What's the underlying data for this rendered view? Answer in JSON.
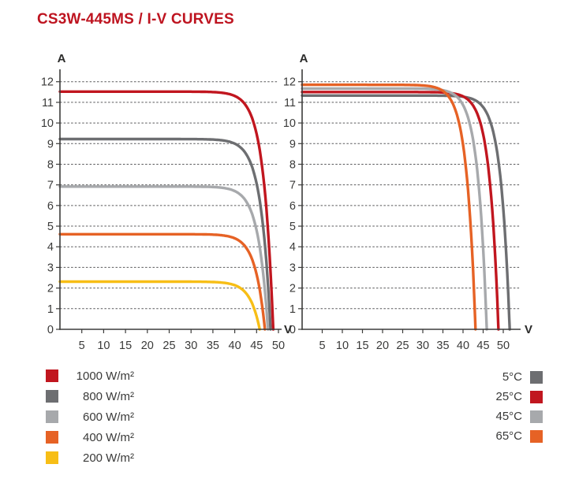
{
  "title": "CS3W-445MS / I-V CURVES",
  "colors": {
    "title": "#BE1420",
    "red": "#C1161F",
    "dark_gray": "#6D6E71",
    "light_gray": "#A7A9AC",
    "orange": "#E66225",
    "yellow": "#F7BE16",
    "axis": "#3C3C3B",
    "grid": "#59595B",
    "tick_text": "#3A3A39",
    "axis_label_text": "#2B2B2A",
    "legend_text": "#3A3A39"
  },
  "chart_data": [
    {
      "type": "line",
      "name": "iv-curves-vs-irradiance",
      "xlabel": "V",
      "ylabel": "A",
      "xlim": [
        0,
        50.8
      ],
      "ylim": [
        0,
        12.6
      ],
      "xticks": [
        5,
        10,
        15,
        20,
        25,
        30,
        35,
        40,
        45,
        50
      ],
      "yticks": [
        0,
        1,
        2,
        3,
        4,
        5,
        6,
        7,
        8,
        9,
        10,
        11,
        12
      ],
      "grid": true,
      "curve_model": "I(V) = Isc * (1 - exp((V - Voc) / knee_v))",
      "knee_v": 2.2,
      "series": [
        {
          "name": "1000 W/m²",
          "color": "#C1161F",
          "isc_a": 11.52,
          "voc_v": 48.8
        },
        {
          "name": "800 W/m²",
          "color": "#6D6E71",
          "isc_a": 9.22,
          "voc_v": 48.2
        },
        {
          "name": "600 W/m²",
          "color": "#A7A9AC",
          "isc_a": 6.92,
          "voc_v": 47.6
        },
        {
          "name": "400 W/m²",
          "color": "#E66225",
          "isc_a": 4.61,
          "voc_v": 46.9
        },
        {
          "name": "200 W/m²",
          "color": "#F7BE16",
          "isc_a": 2.31,
          "voc_v": 45.7
        }
      ],
      "legend_position": "bottom-left"
    },
    {
      "type": "line",
      "name": "iv-curves-vs-temperature",
      "xlabel": "V",
      "ylabel": "A",
      "xlim": [
        0,
        54.3
      ],
      "ylim": [
        0,
        12.6
      ],
      "xticks": [
        5,
        10,
        15,
        20,
        25,
        30,
        35,
        40,
        45,
        50
      ],
      "yticks": [
        0,
        1,
        2,
        3,
        4,
        5,
        6,
        7,
        8,
        9,
        10,
        11,
        12
      ],
      "grid": true,
      "curve_model": "I(V) = Isc * (1 - exp((V - Voc) / knee_v))",
      "knee_v": 2.2,
      "series": [
        {
          "name": "5°C",
          "color": "#6D6E71",
          "isc_a": 11.33,
          "voc_v": 51.6
        },
        {
          "name": "25°C",
          "color": "#C1161F",
          "isc_a": 11.5,
          "voc_v": 48.8
        },
        {
          "name": "45°C",
          "color": "#A7A9AC",
          "isc_a": 11.67,
          "voc_v": 45.9
        },
        {
          "name": "65°C",
          "color": "#E66225",
          "isc_a": 11.85,
          "voc_v": 43.1
        }
      ],
      "legend_position": "bottom-right"
    }
  ],
  "legend_left": {
    "items": [
      {
        "label": "1000 W/m²",
        "color": "#C1161F"
      },
      {
        "label": "800 W/m²",
        "color": "#6D6E71"
      },
      {
        "label": "600 W/m²",
        "color": "#A7A9AC"
      },
      {
        "label": "400 W/m²",
        "color": "#E66225"
      },
      {
        "label": "200 W/m²",
        "color": "#F7BE16"
      }
    ]
  },
  "legend_right": {
    "items": [
      {
        "label": "5°C",
        "color": "#6D6E71"
      },
      {
        "label": "25°C",
        "color": "#C1161F"
      },
      {
        "label": "45°C",
        "color": "#A7A9AC"
      },
      {
        "label": "65°C",
        "color": "#E66225"
      }
    ]
  }
}
